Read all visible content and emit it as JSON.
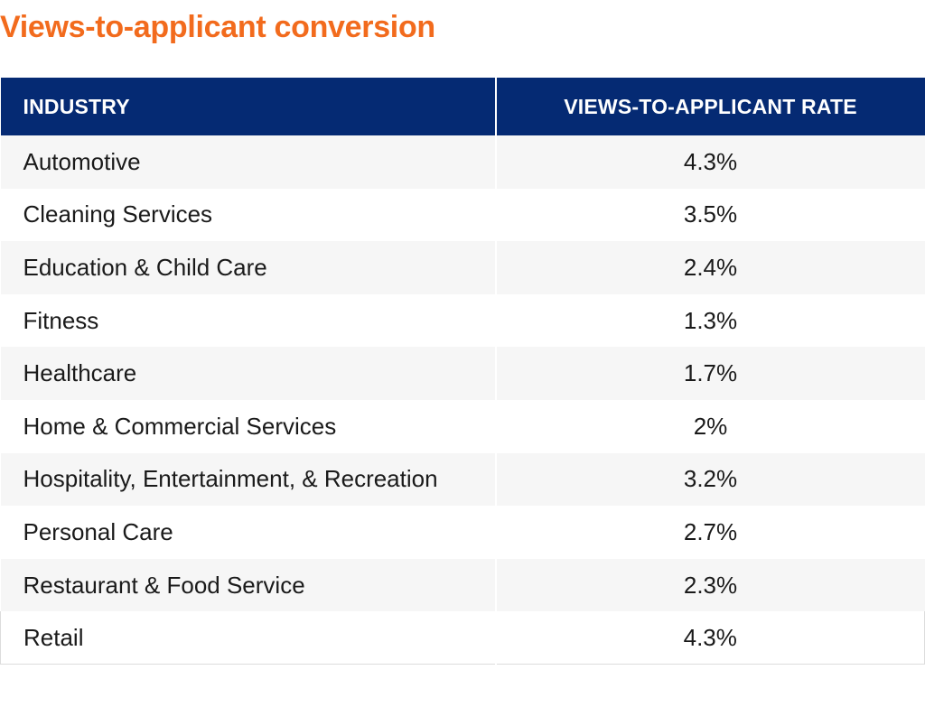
{
  "title": "Views-to-applicant conversion",
  "colors": {
    "title": "#f26b1d",
    "header_bg": "#052a73",
    "header_text": "#ffffff",
    "row_alt_bg": "#f6f6f6"
  },
  "table": {
    "headers": {
      "industry": "INDUSTRY",
      "rate": "VIEWS-TO-APPLICANT RATE"
    },
    "rows": [
      {
        "industry": "Automotive",
        "rate": "4.3%"
      },
      {
        "industry": "Cleaning Services",
        "rate": "3.5%"
      },
      {
        "industry": "Education & Child Care",
        "rate": "2.4%"
      },
      {
        "industry": "Fitness",
        "rate": "1.3%"
      },
      {
        "industry": "Healthcare",
        "rate": "1.7%"
      },
      {
        "industry": "Home & Commercial Services",
        "rate": "2%"
      },
      {
        "industry": "Hospitality, Entertainment, & Recreation",
        "rate": "3.2%"
      },
      {
        "industry": "Personal Care",
        "rate": "2.7%"
      },
      {
        "industry": "Restaurant & Food Service",
        "rate": "2.3%"
      },
      {
        "industry": "Retail",
        "rate": "4.3%"
      }
    ]
  }
}
